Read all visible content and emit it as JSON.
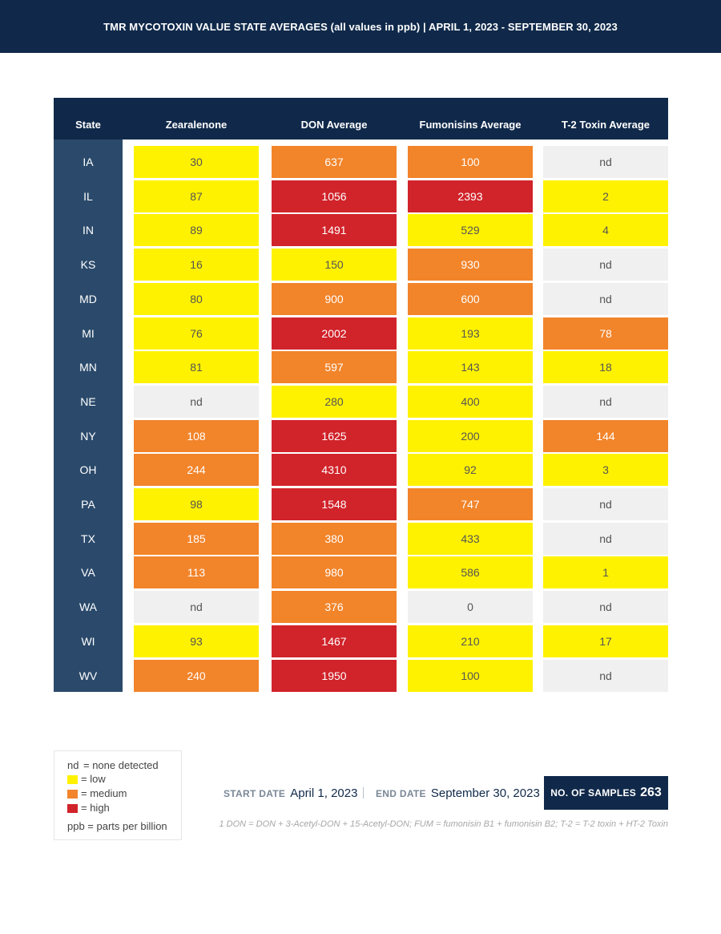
{
  "title": "TMR MYCOTOXIN VALUE STATE AVERAGES (all values in ppb) | APRIL 1, 2023 - SEPTEMBER 30, 2023",
  "table": {
    "headers": [
      "State",
      "Zearalenone",
      "DON Average",
      "Fumonisins Average",
      "T-2 Toxin Average"
    ],
    "rows": [
      {
        "state": "IA",
        "cells": [
          {
            "v": "30",
            "level": "low"
          },
          {
            "v": "637",
            "level": "medium"
          },
          {
            "v": "100",
            "level": "medium"
          },
          {
            "v": "nd",
            "level": "nd"
          }
        ]
      },
      {
        "state": "IL",
        "cells": [
          {
            "v": "87",
            "level": "low"
          },
          {
            "v": "1056",
            "level": "high"
          },
          {
            "v": "2393",
            "level": "high"
          },
          {
            "v": "2",
            "level": "low"
          }
        ]
      },
      {
        "state": "IN",
        "cells": [
          {
            "v": "89",
            "level": "low"
          },
          {
            "v": "1491",
            "level": "high"
          },
          {
            "v": "529",
            "level": "low"
          },
          {
            "v": "4",
            "level": "low"
          }
        ]
      },
      {
        "state": "KS",
        "cells": [
          {
            "v": "16",
            "level": "low"
          },
          {
            "v": "150",
            "level": "low"
          },
          {
            "v": "930",
            "level": "medium"
          },
          {
            "v": "nd",
            "level": "nd"
          }
        ]
      },
      {
        "state": "MD",
        "cells": [
          {
            "v": "80",
            "level": "low"
          },
          {
            "v": "900",
            "level": "medium"
          },
          {
            "v": "600",
            "level": "medium"
          },
          {
            "v": "nd",
            "level": "nd"
          }
        ]
      },
      {
        "state": "MI",
        "cells": [
          {
            "v": "76",
            "level": "low"
          },
          {
            "v": "2002",
            "level": "high"
          },
          {
            "v": "193",
            "level": "low"
          },
          {
            "v": "78",
            "level": "medium"
          }
        ]
      },
      {
        "state": "MN",
        "cells": [
          {
            "v": "81",
            "level": "low"
          },
          {
            "v": "597",
            "level": "medium"
          },
          {
            "v": "143",
            "level": "low"
          },
          {
            "v": "18",
            "level": "low"
          }
        ]
      },
      {
        "state": "NE",
        "cells": [
          {
            "v": "nd",
            "level": "nd"
          },
          {
            "v": "280",
            "level": "low"
          },
          {
            "v": "400",
            "level": "low"
          },
          {
            "v": "nd",
            "level": "nd"
          }
        ]
      },
      {
        "state": "NY",
        "cells": [
          {
            "v": "108",
            "level": "medium"
          },
          {
            "v": "1625",
            "level": "high"
          },
          {
            "v": "200",
            "level": "low"
          },
          {
            "v": "144",
            "level": "medium"
          }
        ]
      },
      {
        "state": "OH",
        "cells": [
          {
            "v": "244",
            "level": "medium"
          },
          {
            "v": "4310",
            "level": "high"
          },
          {
            "v": "92",
            "level": "low"
          },
          {
            "v": "3",
            "level": "low"
          }
        ]
      },
      {
        "state": "PA",
        "cells": [
          {
            "v": "98",
            "level": "low"
          },
          {
            "v": "1548",
            "level": "high"
          },
          {
            "v": "747",
            "level": "medium"
          },
          {
            "v": "nd",
            "level": "nd"
          }
        ]
      },
      {
        "state": "TX",
        "cells": [
          {
            "v": "185",
            "level": "medium"
          },
          {
            "v": "380",
            "level": "medium"
          },
          {
            "v": "433",
            "level": "low"
          },
          {
            "v": "nd",
            "level": "nd"
          }
        ]
      },
      {
        "state": "VA",
        "cells": [
          {
            "v": "113",
            "level": "medium"
          },
          {
            "v": "980",
            "level": "medium"
          },
          {
            "v": "586",
            "level": "low"
          },
          {
            "v": "1",
            "level": "low"
          }
        ]
      },
      {
        "state": "WA",
        "cells": [
          {
            "v": "nd",
            "level": "nd"
          },
          {
            "v": "376",
            "level": "medium"
          },
          {
            "v": "0",
            "level": "nd"
          },
          {
            "v": "nd",
            "level": "nd"
          }
        ]
      },
      {
        "state": "WI",
        "cells": [
          {
            "v": "93",
            "level": "low"
          },
          {
            "v": "1467",
            "level": "high"
          },
          {
            "v": "210",
            "level": "low"
          },
          {
            "v": "17",
            "level": "low"
          }
        ]
      },
      {
        "state": "WV",
        "cells": [
          {
            "v": "240",
            "level": "medium"
          },
          {
            "v": "1950",
            "level": "high"
          },
          {
            "v": "100",
            "level": "low"
          },
          {
            "v": "nd",
            "level": "nd"
          }
        ]
      }
    ]
  },
  "legend": {
    "nd_key": "nd",
    "nd_text": "= none detected",
    "low_text": "= low",
    "medium_text": "= medium",
    "high_text": "= high",
    "ppb_text": "ppb = parts per billion"
  },
  "colors": {
    "navy": "#10294a",
    "state_column": "#2b4a6b",
    "low": "#fff200",
    "medium": "#f2842a",
    "high": "#d1232a",
    "none_detected": "#f0f0f0"
  },
  "meta": {
    "start_label": "START DATE",
    "start_value": "April 1, 2023",
    "end_label": "END DATE",
    "end_value": "September 30, 2023",
    "samples_label": "NO. OF SAMPLES",
    "samples_value": "263"
  },
  "footnote": "1 DON = DON + 3-Acetyl-DON + 15-Acetyl-DON; FUM = fumonisin B1 + fumonisin B2; T-2 = T-2 toxin + HT-2 Toxin"
}
